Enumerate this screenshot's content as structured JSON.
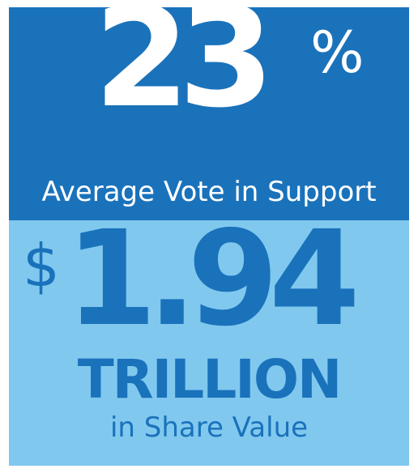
{
  "colors": {
    "dark_blue": "#1a72bb",
    "light_blue": "#80c8ee",
    "white": "#ffffff"
  },
  "top_stat": {
    "value": "23",
    "unit": "%",
    "caption": "Average Vote in Support"
  },
  "bottom_stat": {
    "currency": "$",
    "value": "1.94",
    "scale": "TRILLION",
    "caption": "in Share Value"
  }
}
